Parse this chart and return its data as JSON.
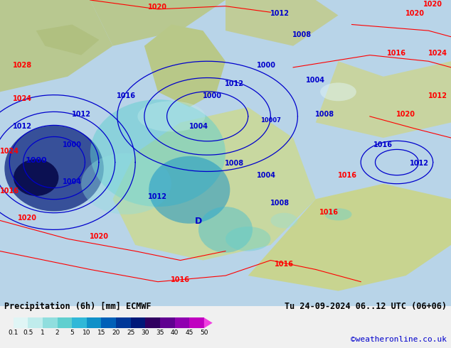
{
  "title_left": "Precipitation (6h) [mm] ECMWF",
  "title_right": "Tu 24-09-2024 06..12 UTC (06+06)",
  "credit": "©weatheronline.co.uk",
  "colorbar_values": [
    0.1,
    0.5,
    1,
    2,
    5,
    10,
    15,
    20,
    25,
    30,
    35,
    40,
    45,
    50
  ],
  "colorbar_colors": [
    "#e0f5f5",
    "#c0ecec",
    "#90dede",
    "#60cfcf",
    "#30b8d8",
    "#1090c8",
    "#0060b8",
    "#003898",
    "#001878",
    "#300060",
    "#600090",
    "#9000b0",
    "#c000c0",
    "#e000d0",
    "#f040e0"
  ],
  "bg_color": "#f0f0f0",
  "map_bg": "#aad4a0",
  "text_color": "#000000",
  "label_fontsize": 9,
  "credit_color": "#0000cc"
}
